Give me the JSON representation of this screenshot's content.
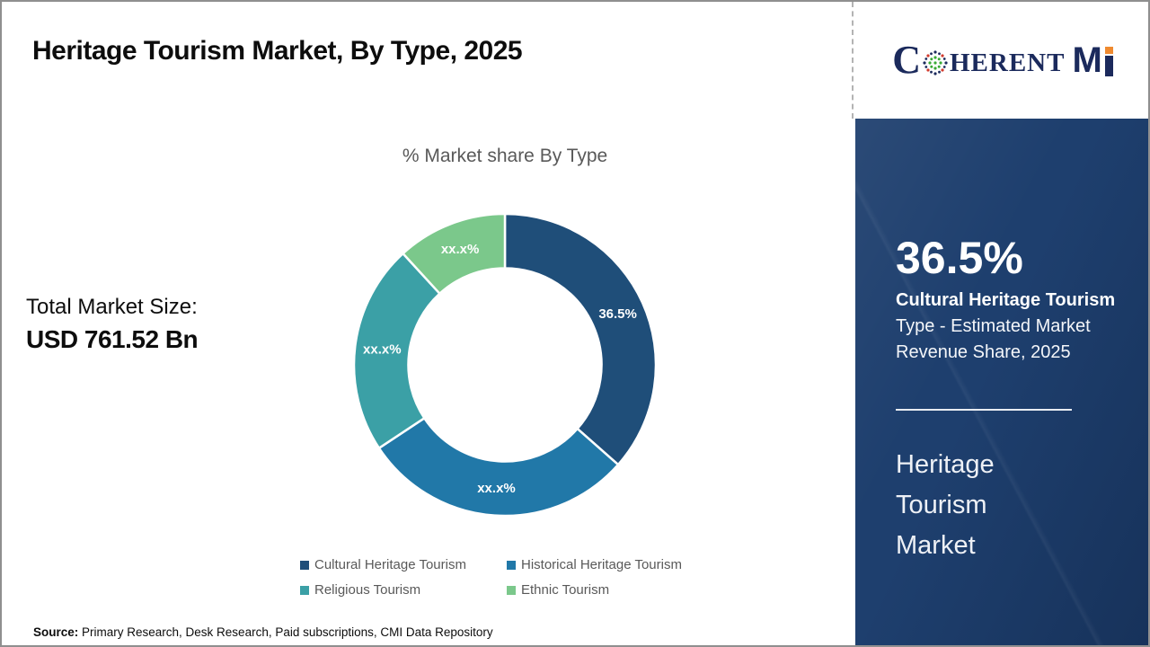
{
  "header": {
    "title": "Heritage Tourism Market, By Type, 2025",
    "logo": {
      "part_c": "C",
      "part_herent": "HERENT",
      "part_m": "M",
      "globe_icon_colors": {
        "center": "#3aaa35",
        "ring": "#1b2a5c",
        "accent": "#d23b2e"
      },
      "navy": "#1b2a5c",
      "orange": "#ef8a2f"
    }
  },
  "main": {
    "chart_title": "% Market share By Type",
    "total_market_label": "Total Market Size:",
    "total_market_value": "USD 761.52 Bn",
    "source_label": "Source:",
    "source_text": " Primary Research, Desk Research, Paid subscriptions, CMI Data Repository"
  },
  "chart_data": {
    "type": "pie",
    "subtype": "donut",
    "title": "% Market share By Type",
    "categories": [
      "Cultural Heritage Tourism",
      "Historical Heritage Tourism",
      "Religious Tourism",
      "Ethnic Tourism"
    ],
    "values": [
      36.5,
      29.2,
      22.5,
      11.8
    ],
    "slice_labels": [
      "36.5%",
      "xx.x%",
      "xx.x%",
      "xx.x%"
    ],
    "colors": [
      "#1f4e79",
      "#2178a8",
      "#3ba0a6",
      "#7bc88b"
    ],
    "start_angle_deg": 0,
    "direction": "clockwise",
    "inner_radius_ratio": 0.64,
    "legend_position": "bottom",
    "legend_text_color": "#595959"
  },
  "sidebar": {
    "background_color": "#1e3f6e",
    "stat_value": "36.5%",
    "stat_label_bold": "Cultural Heritage Tourism",
    "stat_label_rest": " Type - Estimated Market Revenue Share, 2025",
    "market_name_lines": [
      "Heritage",
      "Tourism",
      "Market"
    ]
  }
}
